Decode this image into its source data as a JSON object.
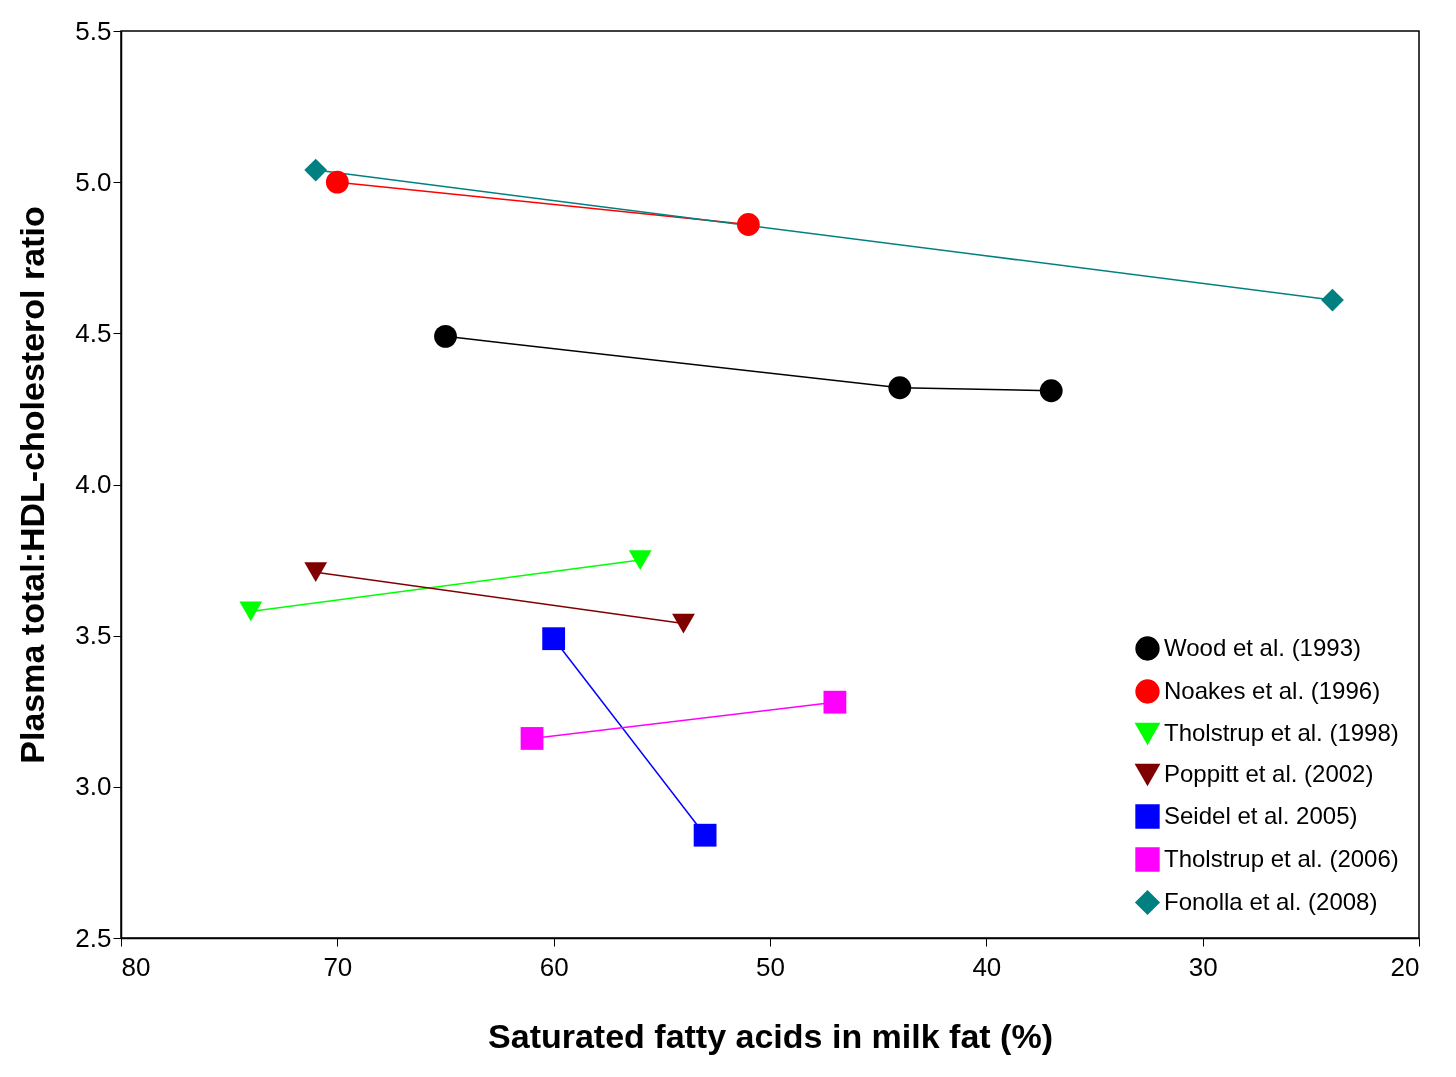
{
  "chart_data": {
    "type": "line",
    "xlabel": "Saturated fatty acids in milk fat (%)",
    "ylabel": "Plasma total:HDL-cholesterol ratio",
    "xlim": [
      80,
      20
    ],
    "xticks": [
      80,
      70,
      60,
      50,
      40,
      30,
      20
    ],
    "ylim": [
      2.5,
      5.5
    ],
    "yticks": [
      2.5,
      {
        "value": 3,
        "label": "3.0"
      },
      3.5,
      {
        "value": 4,
        "label": "4.0"
      },
      4.5,
      {
        "value": 5,
        "label": "5.0"
      },
      5.5
    ],
    "grid": false,
    "legend": "bottom right",
    "line_style": "solid",
    "series": [
      {
        "name": "Wood et al. (1993)",
        "color": "#000000",
        "marker": "circle",
        "x": [
          65,
          44,
          37
        ],
        "values": [
          4.49,
          4.32,
          4.31
        ]
      },
      {
        "name": "Noakes et al. (1996)",
        "color": "#ff0000",
        "marker": "circle",
        "x": [
          70,
          51
        ],
        "values": [
          5.0,
          4.86
        ]
      },
      {
        "name": "Tholstrup et al. (1998)",
        "color": "#00ff00",
        "marker": "triangle",
        "x": [
          74,
          56
        ],
        "values": [
          3.58,
          3.75
        ]
      },
      {
        "name": "Poppitt et al. (2002)",
        "color": "#800000",
        "marker": "triangle",
        "x": [
          71,
          54
        ],
        "values": [
          3.71,
          3.54
        ]
      },
      {
        "name": "Seidel et al. 2005)",
        "color": "#0000ff",
        "marker": "square",
        "x": [
          60,
          53
        ],
        "values": [
          3.49,
          2.84
        ]
      },
      {
        "name": "Tholstrup et al. (2006)",
        "color": "#ff00ff",
        "marker": "square",
        "x": [
          61,
          47
        ],
        "values": [
          3.16,
          3.28
        ]
      },
      {
        "name": "Fonolla et al. (2008)",
        "color": "#008080",
        "marker": "diamond",
        "x": [
          71,
          24
        ],
        "values": [
          5.04,
          4.61
        ]
      }
    ]
  }
}
